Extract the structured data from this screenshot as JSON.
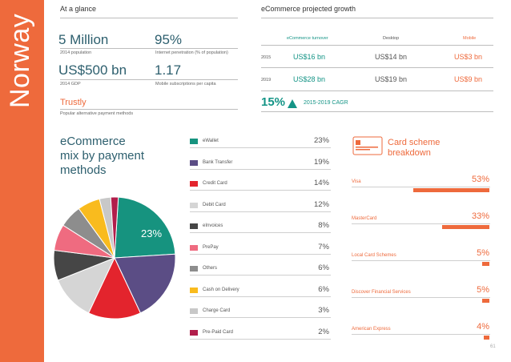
{
  "sidebar": {
    "title": "Norway"
  },
  "glance": {
    "heading": "At a glance",
    "population": {
      "value": "5 Million",
      "caption": "2014 population"
    },
    "internet": {
      "value": "95%",
      "caption": "Internet penetration (% of population)"
    },
    "gdp": {
      "value": "US$500 bn",
      "caption": "2014 GDP"
    },
    "mobile": {
      "value": "1.17",
      "caption": "Mobile subscriptions per capita"
    },
    "trustly": {
      "value": "Trustly",
      "caption": "Popular alternative payment methods"
    }
  },
  "growth": {
    "heading": "eCommerce projected growth",
    "columns": [
      "eCommerce turnover",
      "Desktop",
      "Mobile"
    ],
    "rows": [
      {
        "year": "2015",
        "turnover": "US$16 bn",
        "desktop": "US$14 bn",
        "mobile": "US$3 bn"
      },
      {
        "year": "2019",
        "turnover": "US$28 bn",
        "desktop": "US$19 bn",
        "mobile": "US$9 bn"
      }
    ],
    "cagr": {
      "value": "15%",
      "label": "2015-2019 CAGR"
    }
  },
  "mix": {
    "title_lines": [
      "eCommerce",
      "mix by payment",
      "methods"
    ],
    "pie_label": "23%"
  },
  "chart_data": {
    "type": "pie",
    "title": "eCommerce mix by payment methods",
    "labels": [
      "eWallet",
      "Bank Transfer",
      "Credit Card",
      "Debit Card",
      "eInvoices",
      "PrePay",
      "Others",
      "Cash on Delivery",
      "Charge Card",
      "Pre-Paid Card"
    ],
    "values": [
      23,
      19,
      14,
      12,
      8,
      7,
      6,
      6,
      3,
      2
    ],
    "display": [
      "23%",
      "19%",
      "14%",
      "12%",
      "8%",
      "7%",
      "6%",
      "6%",
      "3%",
      "2%"
    ],
    "colors": [
      "#16937f",
      "#5b4d85",
      "#e3242d",
      "#d5d5d5",
      "#464646",
      "#ef6b80",
      "#8d8d8d",
      "#f9bb1e",
      "#c8c8c8",
      "#b11e4b"
    ]
  },
  "cards": {
    "title_lines": [
      "Card scheme",
      "breakdown"
    ],
    "items": [
      {
        "label": "Visa",
        "pct": "53%",
        "value": 53
      },
      {
        "label": "MasterCard",
        "pct": "33%",
        "value": 33
      },
      {
        "label": "Local Card Schemes",
        "pct": "5%",
        "value": 5
      },
      {
        "label": "Discover Financial Services",
        "pct": "5%",
        "value": 5
      },
      {
        "label": "American Express",
        "pct": "4%",
        "value": 4
      }
    ]
  },
  "page_number": "61"
}
